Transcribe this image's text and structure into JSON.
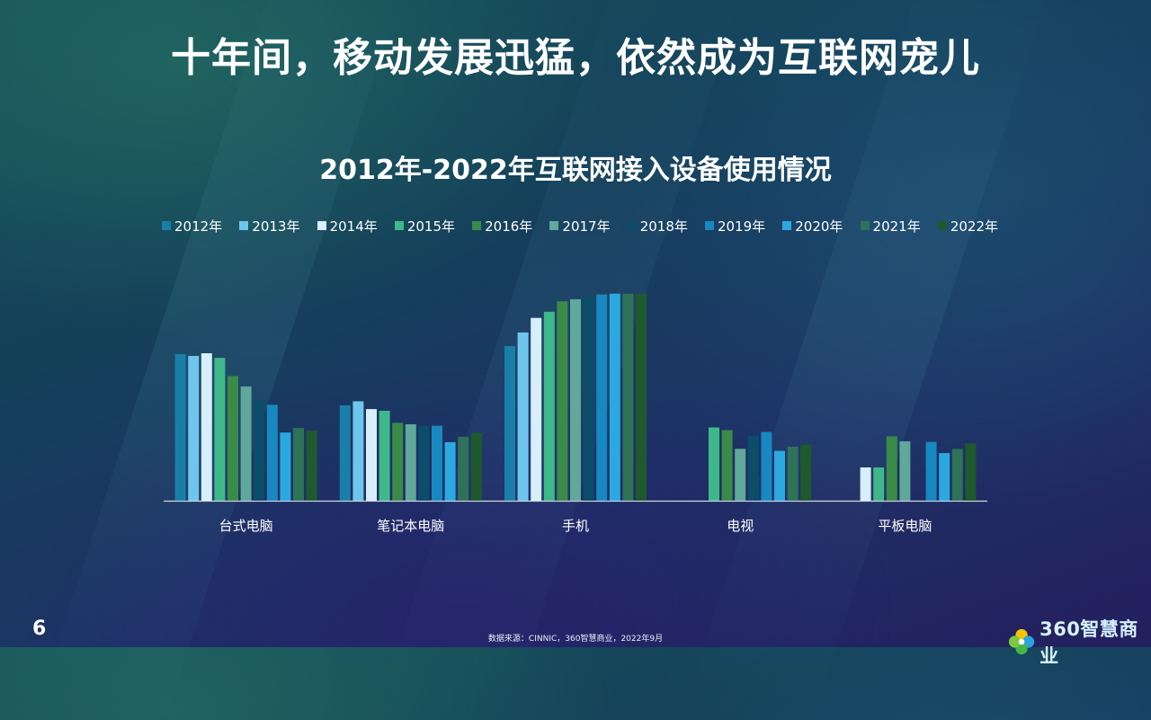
{
  "headline": "十年间，移动发展迅猛，依然成为互联网宠儿",
  "page_number": "6",
  "source": "数据来源：CINNIC，360智慧商业，2022年9月",
  "logo": {
    "text": "360智慧商业",
    "icon": "pinwheel-logo-icon"
  },
  "chart_data": {
    "type": "bar",
    "title": "2012年-2022年互联网接入设备使用情况",
    "xlabel": "",
    "ylabel": "",
    "ylim": [
      0,
      100
    ],
    "grid": false,
    "legend_position": "top",
    "categories": [
      "台式电脑",
      "笔记本电脑",
      "手机",
      "电视",
      "平板电脑"
    ],
    "series": [
      {
        "name": "2012年",
        "color": "#1a7fa8",
        "values": [
          70.6,
          45.9,
          74.5,
          null,
          null
        ]
      },
      {
        "name": "2013年",
        "color": "#6ec6ec",
        "values": [
          69.7,
          47.9,
          81.0,
          null,
          null
        ]
      },
      {
        "name": "2014年",
        "color": "#d8eefa",
        "values": [
          71.0,
          44.1,
          88.0,
          null,
          16.0
        ]
      },
      {
        "name": "2015年",
        "color": "#3fb889",
        "values": [
          68.8,
          43.3,
          91.0,
          35.3,
          16.0
        ]
      },
      {
        "name": "2016年",
        "color": "#3a8a48",
        "values": [
          60.0,
          37.5,
          96.0,
          34.0,
          31.0
        ]
      },
      {
        "name": "2017年",
        "color": "#5fa89a",
        "values": [
          55.0,
          36.8,
          97.0,
          25.0,
          28.6
        ]
      },
      {
        "name": "2018年",
        "color": "#0c4d6a",
        "values": [
          48.5,
          35.9,
          98.6,
          31.3,
          null
        ]
      },
      {
        "name": "2019年",
        "color": "#1788c0",
        "values": [
          46.2,
          36.1,
          99.3,
          33.1,
          28.3
        ]
      },
      {
        "name": "2020年",
        "color": "#2ba8e0",
        "values": [
          32.8,
          28.2,
          99.7,
          24.0,
          22.9
        ]
      },
      {
        "name": "2021年",
        "color": "#2e7257",
        "values": [
          35.0,
          30.8,
          99.6,
          26.0,
          24.9
        ]
      },
      {
        "name": "2022年",
        "color": "#1f5a2e",
        "values": [
          33.7,
          32.6,
          99.6,
          27.0,
          27.6
        ]
      }
    ]
  }
}
